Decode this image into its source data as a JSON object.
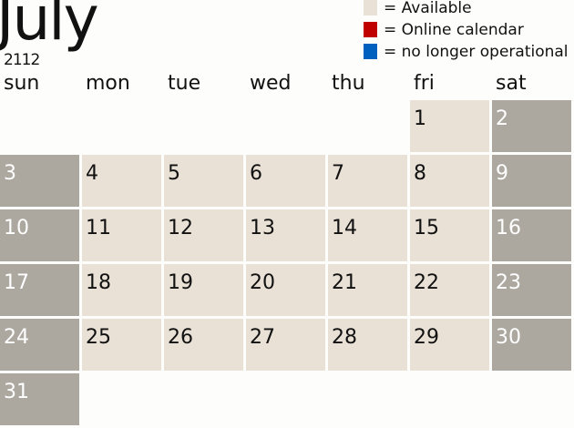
{
  "header": {
    "month": "July",
    "year": "2112"
  },
  "legend": [
    {
      "label": "= Available",
      "color": "#e9e1d6"
    },
    {
      "label": "= Online calendar",
      "color": "#c00000"
    },
    {
      "label": "= no longer operational",
      "color": "#0060c0"
    }
  ],
  "weekdays": [
    "sun",
    "mon",
    "tue",
    "wed",
    "thu",
    "fri",
    "sat"
  ],
  "first_weekday_index": 5,
  "days_in_month": 31,
  "colors": {
    "available": "#e9e1d6",
    "weekend": "#aca79f"
  }
}
